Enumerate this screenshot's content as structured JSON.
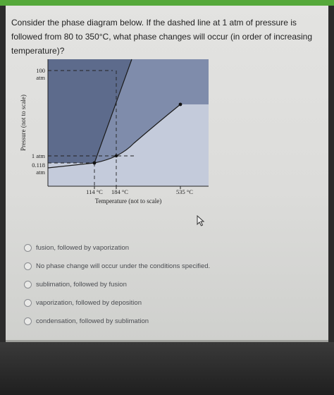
{
  "question": {
    "text": "Consider the phase diagram below. If the dashed line at 1 atm of pressure is followed from 80 to 350°C, what phase changes will occur (in order of increasing temperature)?"
  },
  "diagram": {
    "y_axis_label": "Pressure (not to scale)",
    "x_axis_label": "Temperature (not to scale)",
    "y_ticks": [
      "100",
      "atm",
      "1 atm",
      "0.118",
      "atm"
    ],
    "x_ticks": [
      "114 °C",
      "184 °C",
      "535 °C"
    ],
    "colors": {
      "left_region": "#5d6b8c",
      "middle_region": "#7f8cab",
      "right_region": "#a6b1c8",
      "line": "#1b1b1b"
    }
  },
  "options": [
    {
      "label": "fusion, followed by vaporization"
    },
    {
      "label": "No phase change will occur under the conditions specified."
    },
    {
      "label": "sublimation, followed by fusion"
    },
    {
      "label": "vaporization, followed by deposition"
    },
    {
      "label": "condensation, followed by sublimation"
    }
  ]
}
